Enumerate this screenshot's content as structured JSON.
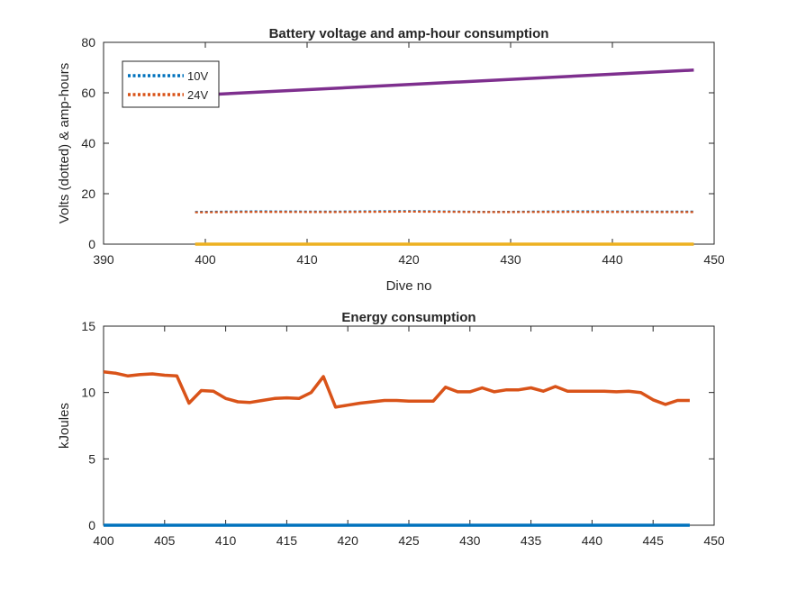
{
  "chart_data": [
    {
      "type": "line",
      "title": "Battery voltage and amp-hour consumption",
      "xlabel": "Dive no",
      "ylabel": "Volts (dotted) & amp-hours",
      "xlim": [
        390,
        450
      ],
      "ylim": [
        0,
        80
      ],
      "xticks": [
        390,
        400,
        410,
        420,
        430,
        440,
        450
      ],
      "yticks": [
        0,
        20,
        40,
        60,
        80
      ],
      "legend_position": "top-left",
      "series": [
        {
          "name": "10V",
          "style": "dotted",
          "color": "#0072BD",
          "x": [
            399,
            405,
            412,
            420,
            428,
            436,
            448
          ],
          "y": [
            12.8,
            13.0,
            12.9,
            13.1,
            12.8,
            13.0,
            12.9
          ]
        },
        {
          "name": "24V",
          "style": "dotted",
          "color": "#D95319",
          "x": [
            399,
            405,
            412,
            420,
            428,
            436,
            448
          ],
          "y": [
            12.6,
            12.8,
            12.7,
            12.9,
            12.7,
            12.8,
            12.7
          ]
        },
        {
          "style": "solid",
          "color": "#EDB120",
          "x": [
            399,
            448
          ],
          "y": [
            0,
            0
          ]
        },
        {
          "style": "solid",
          "color": "#7E2F8E",
          "x": [
            399,
            448
          ],
          "y": [
            59,
            69
          ]
        }
      ]
    },
    {
      "type": "line",
      "title": "Energy consumption",
      "xlabel": "",
      "ylabel": "kJoules",
      "xlim": [
        400,
        450
      ],
      "ylim": [
        0,
        15
      ],
      "xticks": [
        400,
        405,
        410,
        415,
        420,
        425,
        430,
        435,
        440,
        445,
        450
      ],
      "yticks": [
        0,
        5,
        10,
        15
      ],
      "series": [
        {
          "style": "solid",
          "color": "#0072BD",
          "x": [
            400,
            448
          ],
          "y": [
            0,
            0
          ]
        },
        {
          "style": "solid",
          "color": "#D95319",
          "x": [
            400,
            401,
            402,
            403,
            404,
            405,
            406,
            407,
            408,
            409,
            410,
            411,
            412,
            413,
            414,
            415,
            416,
            417,
            418,
            419,
            420,
            421,
            422,
            423,
            424,
            425,
            426,
            427,
            428,
            429,
            430,
            431,
            432,
            433,
            434,
            435,
            436,
            437,
            438,
            439,
            440,
            441,
            442,
            443,
            444,
            445,
            446,
            447,
            448
          ],
          "y": [
            11.55,
            11.45,
            11.25,
            11.35,
            11.4,
            11.3,
            11.25,
            9.2,
            10.15,
            10.1,
            9.55,
            9.3,
            9.25,
            9.4,
            9.55,
            9.6,
            9.55,
            10.0,
            11.2,
            8.9,
            9.05,
            9.2,
            9.3,
            9.4,
            9.4,
            9.35,
            9.35,
            9.35,
            10.4,
            10.05,
            10.05,
            10.35,
            10.05,
            10.2,
            10.2,
            10.35,
            10.1,
            10.45,
            10.1,
            10.1,
            10.1,
            10.1,
            10.05,
            10.1,
            10.0,
            9.45,
            9.1,
            9.4,
            9.4
          ]
        }
      ]
    }
  ]
}
